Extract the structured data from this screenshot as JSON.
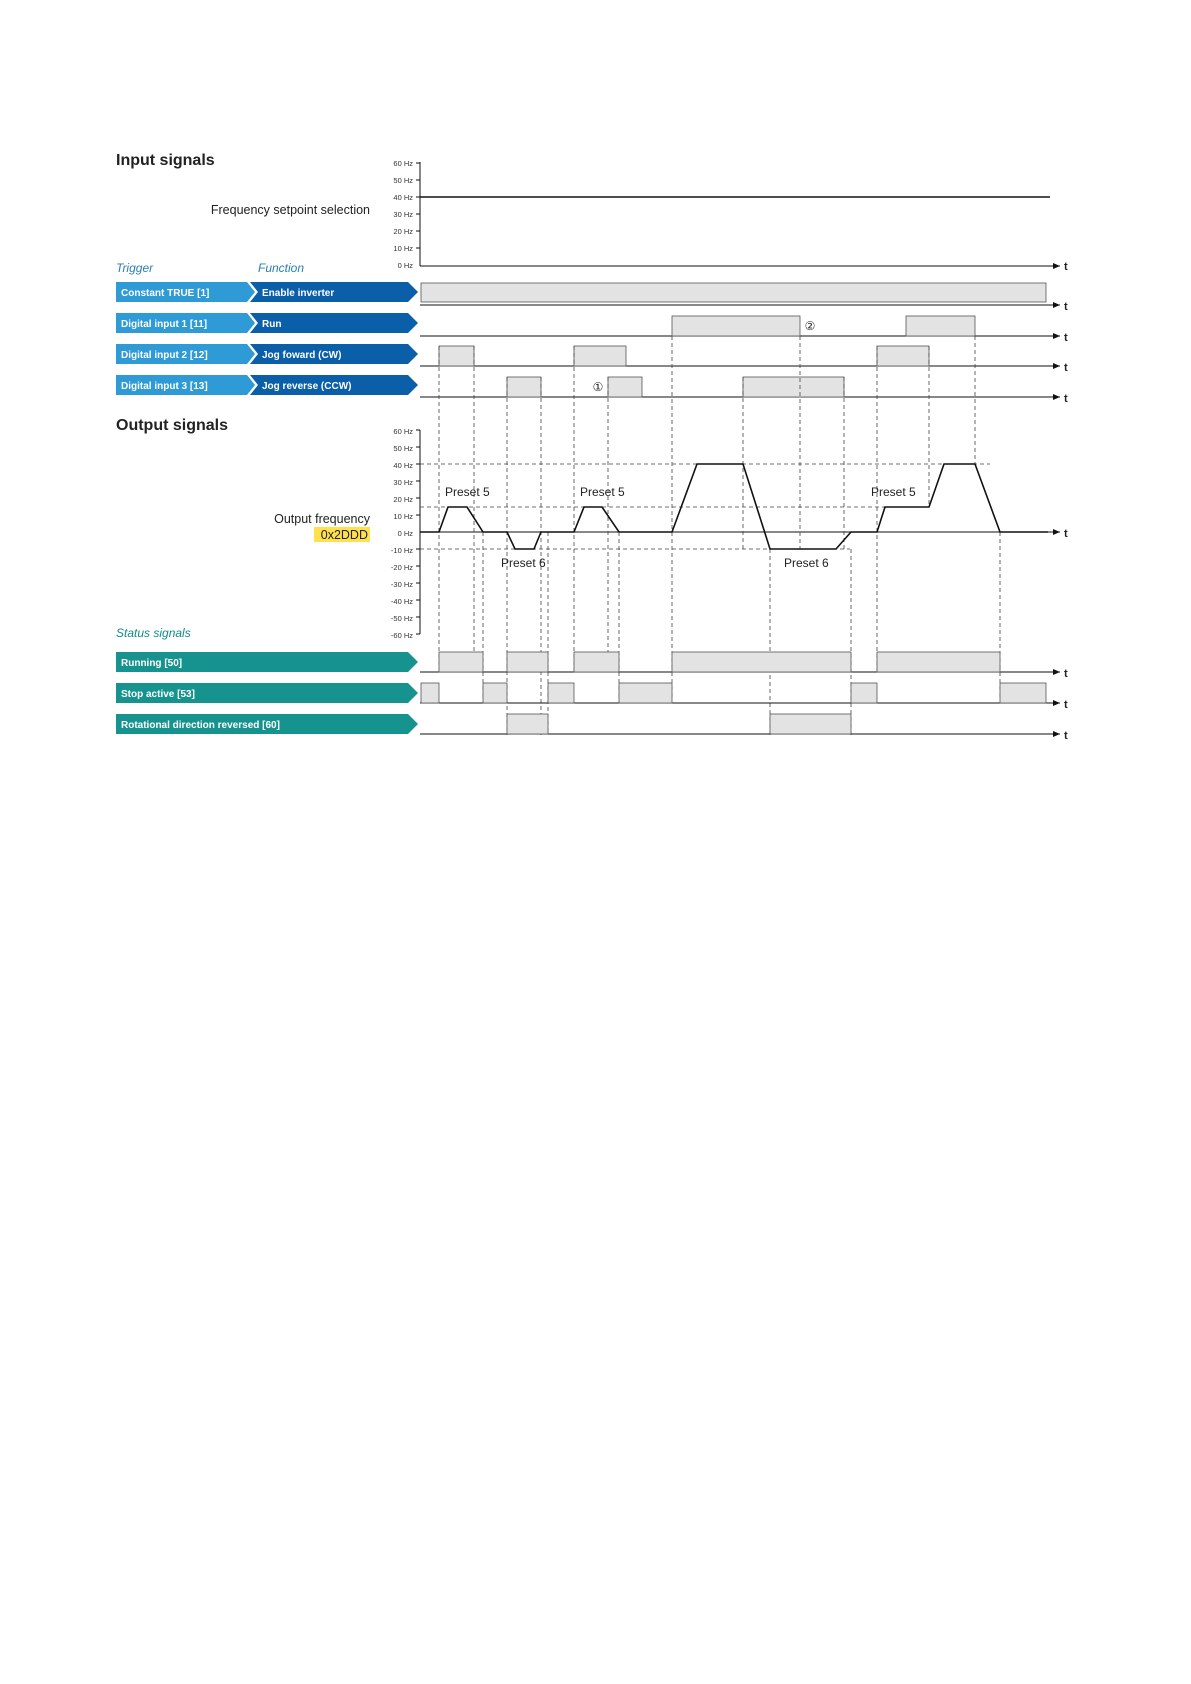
{
  "sections": {
    "input": "Input signals",
    "output": "Output signals"
  },
  "headers": {
    "trigger": "Trigger",
    "function": "Function",
    "status": "Status signals"
  },
  "freq_selection": {
    "label": "Frequency setpoint selection",
    "ticks": [
      "60 Hz",
      "50 Hz",
      "40 Hz",
      "30 Hz",
      "20 Hz",
      "10 Hz",
      "0 Hz"
    ],
    "setpoint_hz": 40
  },
  "output_freq": {
    "label": "Output frequency",
    "param": "0x2DDD",
    "ticks": [
      "60 Hz",
      "50 Hz",
      "40 Hz",
      "30 Hz",
      "20 Hz",
      "10 Hz",
      "0 Hz",
      "-10 Hz",
      "-20 Hz",
      "-30 Hz",
      "-40 Hz",
      "-50 Hz",
      "-60 Hz"
    ],
    "preset_labels": [
      "Preset 5",
      "Preset 6",
      "Preset 5",
      "Preset 6",
      "Preset 5"
    ]
  },
  "trigger_rows": [
    {
      "trigger": "Constant TRUE [1]",
      "function": "Enable inverter"
    },
    {
      "trigger": "Digital input 1 [11]",
      "function": "Run"
    },
    {
      "trigger": "Digital input 2 [12]",
      "function": "Jog foward (CW)"
    },
    {
      "trigger": "Digital input 3 [13]",
      "function": "Jog reverse (CCW)"
    }
  ],
  "status_rows": [
    {
      "label": "Running [50]"
    },
    {
      "label": "Stop active [53]"
    },
    {
      "label": "Rotational direction reversed [60]"
    }
  ],
  "axis_symbol": "t",
  "markers": [
    "①",
    "②"
  ],
  "colors": {
    "trigger_tag": "#2e9ad6",
    "function_tag": "#0b5ea8",
    "status_tag": "#17938f",
    "highlight": "#ffe14d",
    "pulse_fill": "#e3e3e3"
  }
}
